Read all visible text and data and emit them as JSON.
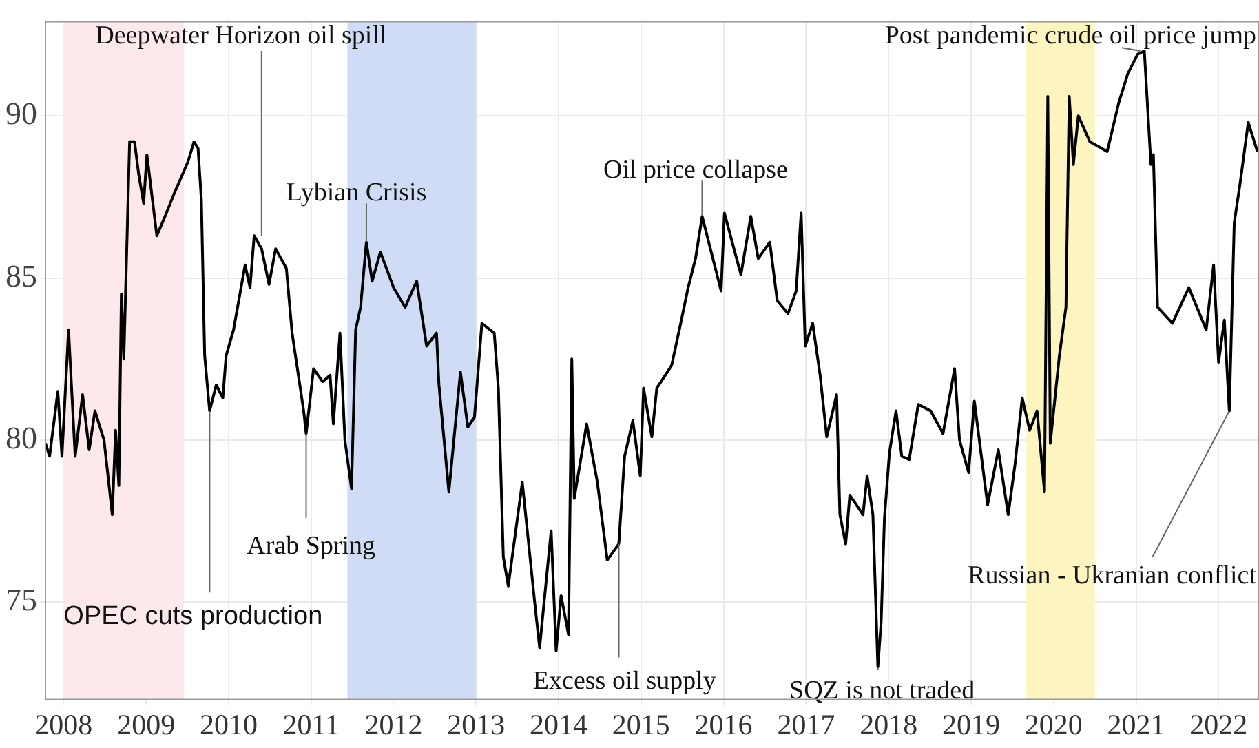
{
  "chart_data": {
    "type": "line",
    "series": [
      {
        "color": "#000000",
        "x": [
          2007.78,
          2007.83,
          2007.93,
          2007.98,
          2008.06,
          2008.14,
          2008.23,
          2008.31,
          2008.38,
          2008.49,
          2008.59,
          2008.63,
          2008.67,
          2008.7,
          2008.73,
          2008.8,
          2008.86,
          2008.91,
          2008.97,
          2009.01,
          2009.13,
          2009.23,
          2009.34,
          2009.51,
          2009.58,
          2009.63,
          2009.67,
          2009.71,
          2009.77,
          2009.85,
          2009.93,
          2009.97,
          2010.06,
          2010.2,
          2010.26,
          2010.31,
          2010.4,
          2010.49,
          2010.57,
          2010.7,
          2010.77,
          2010.91,
          2010.94,
          2011.03,
          2011.14,
          2011.23,
          2011.27,
          2011.35,
          2011.41,
          2011.49,
          2011.54,
          2011.6,
          2011.67,
          2011.74,
          2011.84,
          2012.0,
          2012.14,
          2012.28,
          2012.4,
          2012.52,
          2012.55,
          2012.67,
          2012.81,
          2012.9,
          2012.98,
          2013.07,
          2013.22,
          2013.27,
          2013.33,
          2013.39,
          2013.56,
          2013.71,
          2013.77,
          2013.91,
          2013.97,
          2014.03,
          2014.12,
          2014.16,
          2014.19,
          2014.34,
          2014.47,
          2014.59,
          2014.73,
          2014.8,
          2014.9,
          2014.99,
          2015.03,
          2015.13,
          2015.19,
          2015.37,
          2015.48,
          2015.57,
          2015.66,
          2015.74,
          2015.86,
          2015.97,
          2016.01,
          2016.21,
          2016.33,
          2016.42,
          2016.56,
          2016.65,
          2016.78,
          2016.88,
          2016.94,
          2016.99,
          2017.08,
          2017.17,
          2017.25,
          2017.37,
          2017.41,
          2017.48,
          2017.53,
          2017.69,
          2017.74,
          2017.81,
          2017.87,
          2017.91,
          2017.95,
          2018.01,
          2018.09,
          2018.16,
          2018.25,
          2018.36,
          2018.51,
          2018.66,
          2018.8,
          2018.86,
          2018.97,
          2019.04,
          2019.2,
          2019.33,
          2019.45,
          2019.53,
          2019.62,
          2019.71,
          2019.8,
          2019.89,
          2019.93,
          2019.96,
          2020.07,
          2020.15,
          2020.19,
          2020.24,
          2020.3,
          2020.44,
          2020.65,
          2020.79,
          2020.9,
          2021.02,
          2021.1,
          2021.18,
          2021.21,
          2021.26,
          2021.44,
          2021.64,
          2021.85,
          2021.94,
          2022.0,
          2022.07,
          2022.13,
          2022.19,
          2022.26,
          2022.36,
          2022.47
        ],
        "values": [
          79.9,
          79.5,
          81.5,
          79.5,
          83.4,
          79.5,
          81.4,
          79.7,
          80.9,
          80.0,
          77.7,
          80.3,
          78.6,
          84.5,
          82.5,
          89.2,
          89.2,
          88.2,
          87.3,
          88.8,
          86.3,
          86.9,
          87.6,
          88.6,
          89.2,
          89.0,
          87.4,
          82.6,
          80.9,
          81.7,
          81.3,
          82.6,
          83.4,
          85.4,
          84.7,
          86.3,
          85.9,
          84.8,
          85.9,
          85.3,
          83.3,
          80.9,
          80.2,
          82.2,
          81.8,
          82.0,
          80.5,
          83.3,
          80.0,
          78.5,
          83.4,
          84.1,
          86.1,
          84.9,
          85.8,
          84.7,
          84.1,
          84.9,
          82.9,
          83.3,
          81.7,
          78.4,
          82.1,
          80.4,
          80.7,
          83.6,
          83.3,
          81.6,
          76.4,
          75.5,
          78.7,
          75.0,
          73.6,
          77.2,
          73.5,
          75.2,
          74.0,
          82.5,
          78.2,
          80.5,
          78.7,
          76.3,
          76.8,
          79.5,
          80.6,
          78.9,
          81.6,
          80.1,
          81.6,
          82.3,
          83.6,
          84.7,
          85.6,
          86.9,
          85.7,
          84.6,
          87.0,
          85.1,
          86.9,
          85.6,
          86.1,
          84.3,
          83.9,
          84.6,
          87.0,
          82.9,
          83.6,
          82.0,
          80.1,
          81.4,
          77.7,
          76.8,
          78.3,
          77.7,
          78.9,
          77.7,
          73.0,
          74.4,
          77.6,
          79.6,
          80.9,
          79.5,
          79.4,
          81.1,
          80.9,
          80.2,
          82.2,
          80.0,
          79.0,
          81.2,
          78.0,
          79.7,
          77.7,
          79.2,
          81.3,
          80.3,
          80.9,
          78.4,
          90.6,
          79.9,
          82.6,
          84.1,
          90.6,
          88.5,
          90.0,
          89.2,
          88.9,
          90.4,
          91.3,
          91.9,
          92.0,
          88.5,
          88.8,
          84.1,
          83.6,
          84.7,
          83.4,
          85.4,
          82.4,
          83.7,
          80.9,
          86.7,
          87.9,
          89.8,
          88.9
        ]
      }
    ],
    "xlim": [
      2007.78,
      2022.49
    ],
    "xticks": [
      2008,
      2009,
      2010,
      2011,
      2012,
      2013,
      2014,
      2015,
      2016,
      2017,
      2018,
      2019,
      2020,
      2021,
      2022
    ],
    "ylim": [
      72.0,
      92.9
    ],
    "yticks": [
      75,
      80,
      85,
      90
    ],
    "grid": true,
    "legend": false,
    "marker": "none",
    "line_style": "solid",
    "bands": [
      {
        "axis": "x",
        "from": 2008.0,
        "to": 2009.46,
        "color": "#fde8ec"
      },
      {
        "axis": "x",
        "from": 2011.44,
        "to": 2013.0,
        "color": "#d0dcf5"
      },
      {
        "axis": "x",
        "from": 2019.67,
        "to": 2020.5,
        "color": "#fdf5bf"
      }
    ],
    "annotations": [
      {
        "text": "Deepwater Horizon oil spill",
        "x": 2010.4,
        "y": 86.3
      },
      {
        "text": "OPEC cuts production",
        "x": 2009.77,
        "y": 80.9
      },
      {
        "text": "Arab Spring",
        "x": 2010.94,
        "y": 80.2
      },
      {
        "text": "Lybian Crisis",
        "x": 2011.67,
        "y": 86.1
      },
      {
        "text": "Oil price collapse",
        "x": 2015.74,
        "y": 86.9
      },
      {
        "text": "Excess oil supply",
        "x": 2014.73,
        "y": 76.8
      },
      {
        "text": "SQZ is not traded",
        "x": 2017.87,
        "y": 73.0
      },
      {
        "text": "Post pandemic crude oil price jump",
        "x": 2021.05,
        "y": 92.0
      },
      {
        "text": "Russian - Ukranian conflict",
        "x": 2022.13,
        "y": 80.9
      }
    ]
  }
}
